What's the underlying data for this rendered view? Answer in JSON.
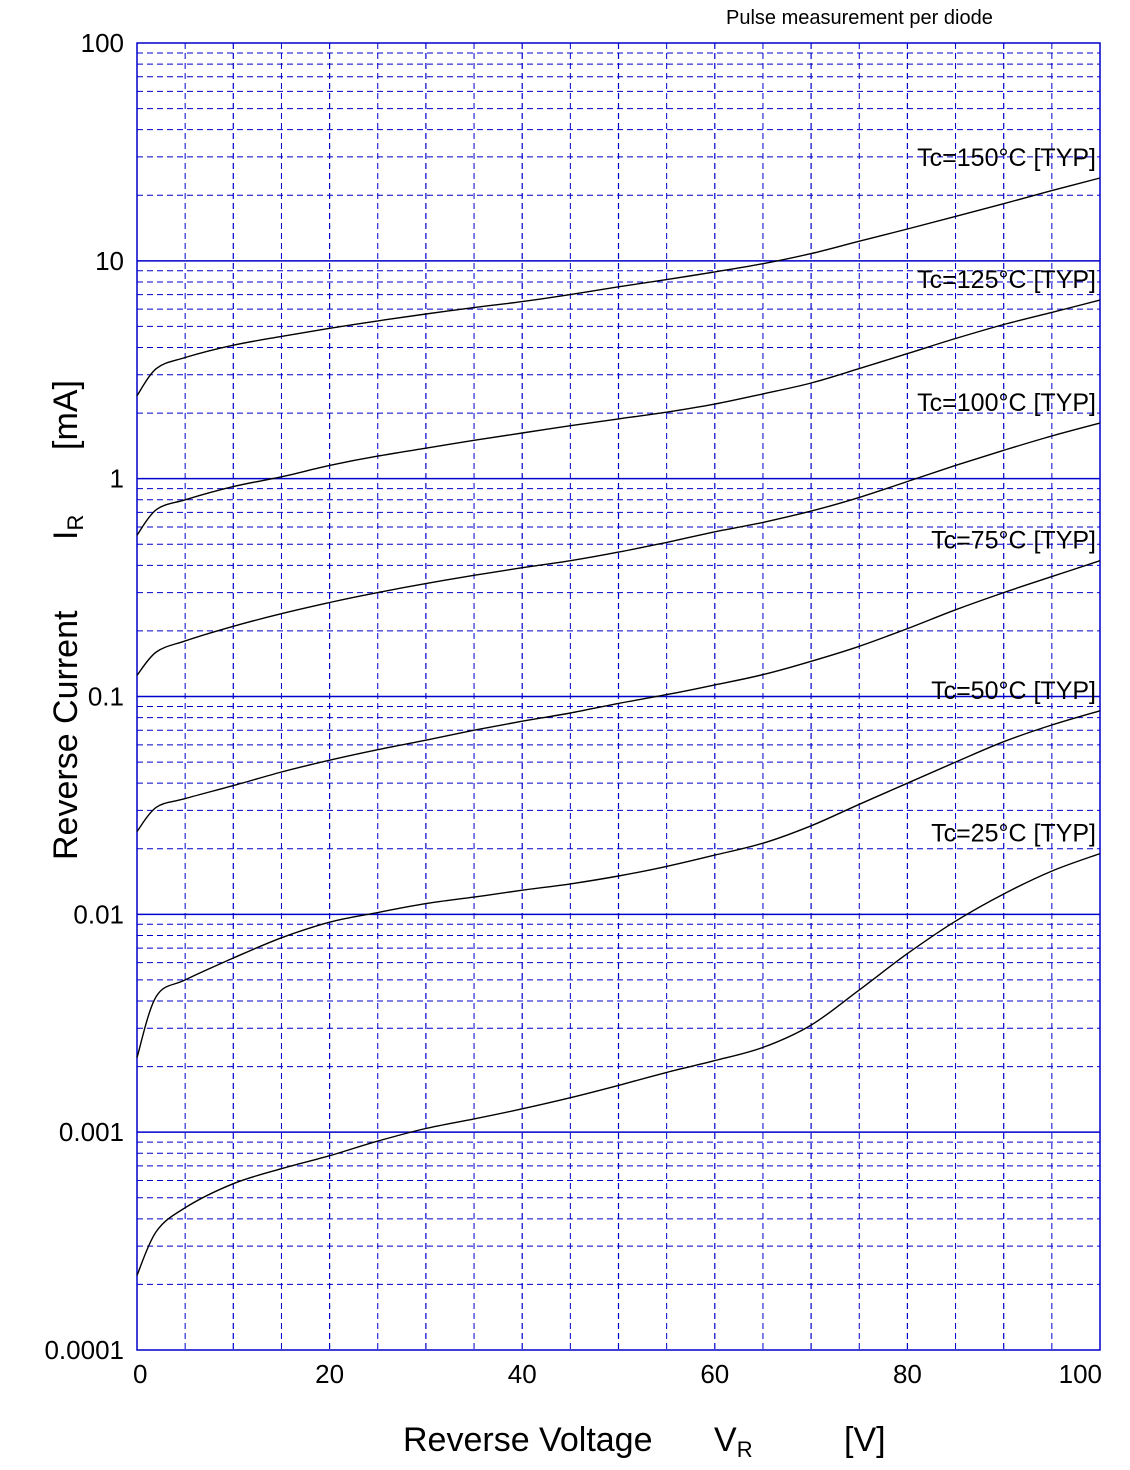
{
  "note": "Pulse measurement per diode",
  "chart_data": {
    "type": "line",
    "title": "",
    "xlabel": {
      "name": "Reverse Voltage",
      "symbol": "V",
      "subscript": "R",
      "unit": "[V]"
    },
    "ylabel": {
      "name": "Reverse Current",
      "symbol": "I",
      "subscript": "R",
      "unit": "[mA]"
    },
    "xlim": [
      0,
      100
    ],
    "ylim": [
      0.0001,
      100
    ],
    "yscale": "log",
    "grid": true,
    "x_ticks": [
      "0",
      "20",
      "40",
      "60",
      "80",
      "100"
    ],
    "y_ticks": [
      "0.0001",
      "0.001",
      "0.01",
      "0.1",
      "1",
      "10",
      "100"
    ],
    "line_color": "#000000",
    "grid_color": "#0000cc",
    "x": [
      0,
      2,
      5,
      10,
      15,
      20,
      25,
      30,
      35,
      40,
      45,
      50,
      55,
      60,
      65,
      70,
      75,
      80,
      85,
      90,
      95,
      100
    ],
    "series": [
      {
        "name": "Tc=150°C  [TYP]",
        "values": [
          2.4,
          3.2,
          3.6,
          4.1,
          4.5,
          4.9,
          5.3,
          5.7,
          6.1,
          6.5,
          7.0,
          7.6,
          8.2,
          8.9,
          9.7,
          10.8,
          12.3,
          14.0,
          16.0,
          18.3,
          21.0,
          24.0
        ]
      },
      {
        "name": "Tc=125°C  [TYP]",
        "values": [
          0.55,
          0.72,
          0.8,
          0.92,
          1.02,
          1.15,
          1.27,
          1.38,
          1.5,
          1.62,
          1.75,
          1.88,
          2.02,
          2.2,
          2.45,
          2.75,
          3.2,
          3.75,
          4.4,
          5.1,
          5.8,
          6.6
        ]
      },
      {
        "name": "Tc=100°C  [TYP]",
        "values": [
          0.125,
          0.16,
          0.18,
          0.21,
          0.24,
          0.27,
          0.3,
          0.33,
          0.36,
          0.39,
          0.42,
          0.46,
          0.51,
          0.57,
          0.63,
          0.71,
          0.82,
          0.97,
          1.15,
          1.35,
          1.57,
          1.8
        ]
      },
      {
        "name": "Tc=75°C  [TYP]",
        "values": [
          0.024,
          0.031,
          0.034,
          0.039,
          0.045,
          0.051,
          0.057,
          0.063,
          0.07,
          0.077,
          0.084,
          0.093,
          0.102,
          0.113,
          0.126,
          0.145,
          0.17,
          0.205,
          0.25,
          0.3,
          0.355,
          0.42
        ]
      },
      {
        "name": "Tc=50°C  [TYP]",
        "values": [
          0.0022,
          0.0042,
          0.005,
          0.0063,
          0.0078,
          0.0092,
          0.0102,
          0.0112,
          0.012,
          0.0129,
          0.0138,
          0.015,
          0.0166,
          0.0187,
          0.0212,
          0.0255,
          0.032,
          0.04,
          0.05,
          0.062,
          0.074,
          0.086
        ]
      },
      {
        "name": "Tc=25°C  [TYP]",
        "values": [
          0.00022,
          0.00035,
          0.00045,
          0.00058,
          0.00068,
          0.00078,
          0.00091,
          0.00104,
          0.00115,
          0.00128,
          0.00144,
          0.00164,
          0.00188,
          0.00213,
          0.00245,
          0.0031,
          0.0045,
          0.0066,
          0.0093,
          0.0124,
          0.0158,
          0.019
        ]
      }
    ]
  }
}
